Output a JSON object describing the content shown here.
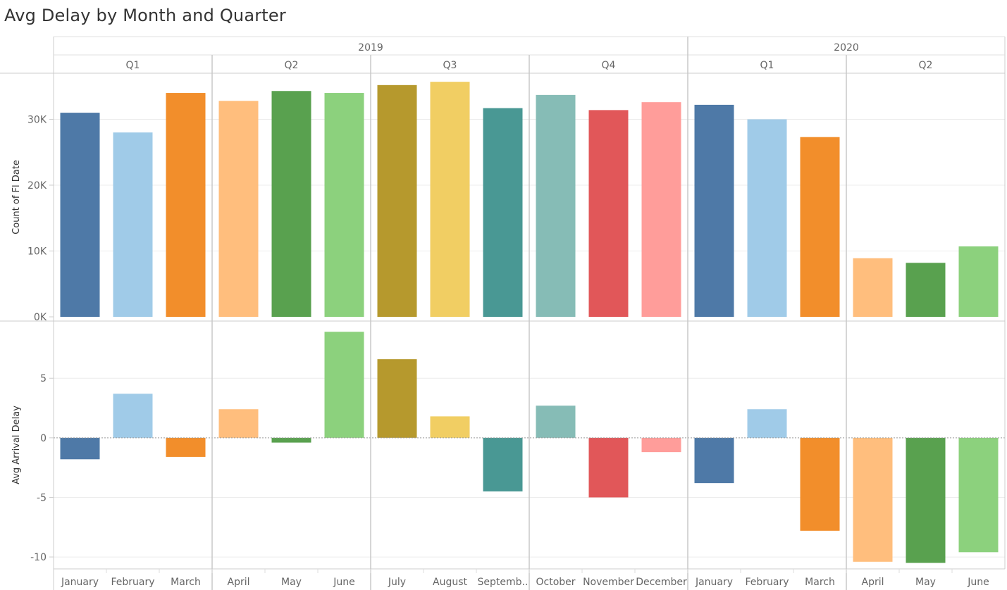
{
  "chart_data": {
    "type": "bar",
    "title": "Avg Delay by Month and Quarter",
    "colors": {
      "January": "#4e79a7",
      "February": "#a0cbe8",
      "March": "#f28e2b",
      "April": "#ffbe7d",
      "May": "#59a14f",
      "June": "#8cd17d",
      "July": "#b6992d",
      "August": "#f1ce63",
      "September": "#499894",
      "October": "#86bcb6",
      "November": "#e15759",
      "December": "#ff9d9a"
    },
    "years": [
      {
        "label": "2019",
        "quarters": [
          {
            "label": "Q1",
            "months": [
              {
                "key": "January",
                "label": "January",
                "count": 31000,
                "avg_delay": -1.8
              },
              {
                "key": "February",
                "label": "February",
                "count": 28000,
                "avg_delay": 3.7
              },
              {
                "key": "March",
                "label": "March",
                "count": 34000,
                "avg_delay": -1.6
              }
            ]
          },
          {
            "label": "Q2",
            "months": [
              {
                "key": "April",
                "label": "April",
                "count": 32800,
                "avg_delay": 2.4
              },
              {
                "key": "May",
                "label": "May",
                "count": 34300,
                "avg_delay": -0.4
              },
              {
                "key": "June",
                "label": "June",
                "count": 34000,
                "avg_delay": 8.9
              }
            ]
          },
          {
            "label": "Q3",
            "months": [
              {
                "key": "July",
                "label": "July",
                "count": 35200,
                "avg_delay": 6.6
              },
              {
                "key": "August",
                "label": "August",
                "count": 35700,
                "avg_delay": 1.8
              },
              {
                "key": "September",
                "label": "Septemb..",
                "count": 31700,
                "avg_delay": -4.5
              }
            ]
          },
          {
            "label": "Q4",
            "months": [
              {
                "key": "October",
                "label": "October",
                "count": 33700,
                "avg_delay": 2.7
              },
              {
                "key": "November",
                "label": "November",
                "count": 31400,
                "avg_delay": -5.0
              },
              {
                "key": "December",
                "label": "December",
                "count": 32600,
                "avg_delay": -1.2
              }
            ]
          }
        ]
      },
      {
        "label": "2020",
        "quarters": [
          {
            "label": "Q1",
            "months": [
              {
                "key": "January",
                "label": "January",
                "count": 32200,
                "avg_delay": -3.8
              },
              {
                "key": "February",
                "label": "February",
                "count": 30000,
                "avg_delay": 2.4
              },
              {
                "key": "March",
                "label": "March",
                "count": 27300,
                "avg_delay": -7.8
              }
            ]
          },
          {
            "label": "Q2",
            "months": [
              {
                "key": "April",
                "label": "April",
                "count": 8900,
                "avg_delay": -10.4
              },
              {
                "key": "May",
                "label": "May",
                "count": 8200,
                "avg_delay": -10.5
              },
              {
                "key": "June",
                "label": "June",
                "count": 10700,
                "avg_delay": -9.6
              }
            ]
          }
        ]
      }
    ],
    "panels": [
      {
        "measure": "count",
        "ylabel": "Count of Fl Date",
        "ylim": [
          0,
          37000
        ],
        "ticks": [
          {
            "value": 0,
            "label": "0K"
          },
          {
            "value": 10000,
            "label": "10K"
          },
          {
            "value": 20000,
            "label": "20K"
          },
          {
            "value": 30000,
            "label": "30K"
          }
        ]
      },
      {
        "measure": "avg_delay",
        "ylabel": "Avg Arrival Delay",
        "ylim": [
          -11,
          9.8
        ],
        "zero_line": true,
        "ticks": [
          {
            "value": 5,
            "label": "5"
          },
          {
            "value": 0,
            "label": "0"
          },
          {
            "value": -5,
            "label": "-5"
          },
          {
            "value": -10,
            "label": "-10"
          }
        ]
      }
    ],
    "grid": true,
    "legend": "none"
  }
}
